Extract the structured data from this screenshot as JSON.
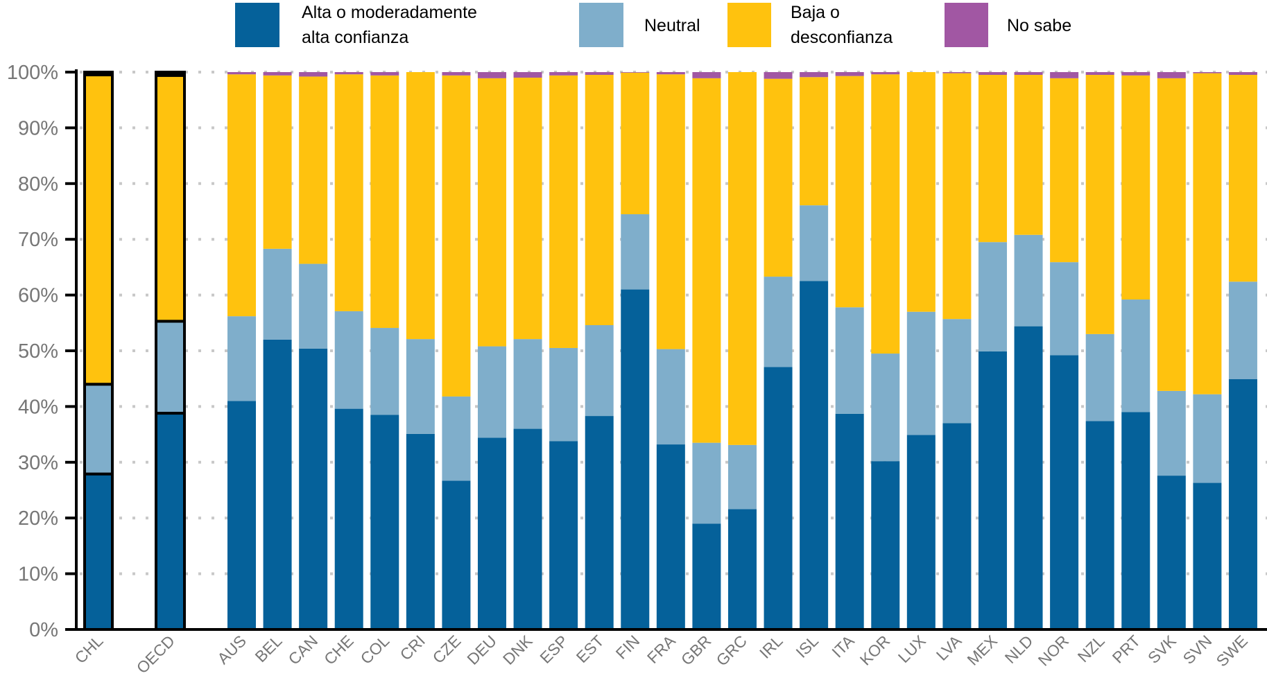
{
  "chart_data": {
    "type": "bar",
    "stacked": true,
    "normalized": true,
    "title": "",
    "xlabel": "",
    "ylabel": "",
    "ylim": [
      0,
      100
    ],
    "y_ticks": [
      "0%",
      "10%",
      "20%",
      "30%",
      "40%",
      "50%",
      "60%",
      "70%",
      "80%",
      "90%",
      "100%"
    ],
    "y_tick_values": [
      0,
      10,
      20,
      30,
      40,
      50,
      60,
      70,
      80,
      90,
      100
    ],
    "grid": "horizontal-dotted",
    "legend_position": "top",
    "highlighted_categories": [
      "CHL",
      "OECD"
    ],
    "categories": [
      "CHL",
      "OECD",
      "AUS",
      "BEL",
      "CAN",
      "CHE",
      "COL",
      "CRI",
      "CZE",
      "DEU",
      "DNK",
      "ESP",
      "EST",
      "FIN",
      "FRA",
      "GBR",
      "GRC",
      "IRL",
      "ISL",
      "ITA",
      "KOR",
      "LUX",
      "LVA",
      "MEX",
      "NLD",
      "NOR",
      "NZL",
      "PRT",
      "SVK",
      "SVN",
      "SWE"
    ],
    "series": [
      {
        "name": "Alta o moderadamente alta confianza",
        "legend_lines": [
          "Alta o moderadamente",
          "alta confianza"
        ],
        "color": "#05619A",
        "values": [
          27.9,
          38.8,
          41.0,
          52.0,
          50.4,
          39.6,
          38.5,
          35.1,
          26.7,
          34.4,
          36.0,
          33.8,
          38.3,
          61.0,
          33.2,
          19.0,
          21.6,
          47.1,
          62.5,
          38.7,
          30.2,
          34.9,
          37.0,
          49.9,
          54.4,
          49.2,
          37.4,
          39.0,
          27.6,
          26.3,
          44.9
        ]
      },
      {
        "name": "Neutral",
        "legend_lines": [
          "Neutral"
        ],
        "color": "#7FAECB",
        "values": [
          16.1,
          16.5,
          15.2,
          16.3,
          15.2,
          17.5,
          15.6,
          17.0,
          15.1,
          16.4,
          16.1,
          16.7,
          16.3,
          13.5,
          17.1,
          14.5,
          11.5,
          16.2,
          13.6,
          19.1,
          19.3,
          22.1,
          18.7,
          19.6,
          16.4,
          16.7,
          15.6,
          20.2,
          15.2,
          15.9,
          17.5
        ]
      },
      {
        "name": "Baja o desconfianza",
        "legend_lines": [
          "Baja o",
          "desconfianza"
        ],
        "color": "#FFC20E",
        "values": [
          55.5,
          44.1,
          43.4,
          31.1,
          33.6,
          42.5,
          45.3,
          47.9,
          57.6,
          48.1,
          46.9,
          48.9,
          44.9,
          25.4,
          49.3,
          65.4,
          66.9,
          35.5,
          23.0,
          41.5,
          50.1,
          43.0,
          44.1,
          30.0,
          28.7,
          33.0,
          46.5,
          40.2,
          56.1,
          57.6,
          37.1
        ]
      },
      {
        "name": "No sabe",
        "legend_lines": [
          "No sabe"
        ],
        "color": "#A157A3",
        "values": [
          0.5,
          0.6,
          0.4,
          0.6,
          0.8,
          0.4,
          0.6,
          0.0,
          0.6,
          1.1,
          1.0,
          0.6,
          0.5,
          0.1,
          0.4,
          1.1,
          0.0,
          1.2,
          0.9,
          0.7,
          0.4,
          0.0,
          0.2,
          0.5,
          0.5,
          1.1,
          0.5,
          0.6,
          1.1,
          0.2,
          0.5
        ]
      }
    ]
  }
}
